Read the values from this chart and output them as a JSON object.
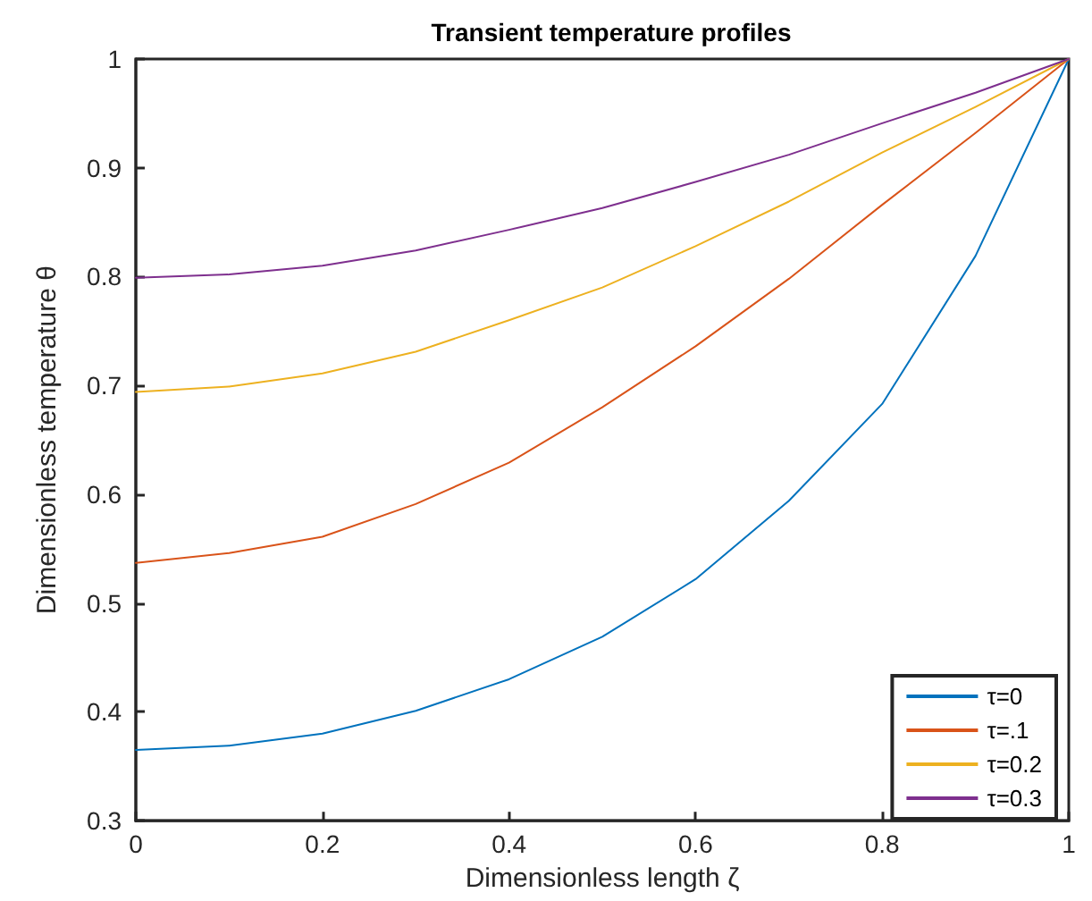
{
  "chart_data": {
    "type": "line",
    "title": "Transient temperature profiles",
    "xlabel": "Dimensionless length ζ",
    "ylabel": "Dimensionless temperature θ",
    "x": [
      0,
      0.1,
      0.2,
      0.3,
      0.4,
      0.5,
      0.6,
      0.7,
      0.8,
      0.9,
      1
    ],
    "series": [
      {
        "name": "τ=0",
        "color": "#0072bd",
        "values": [
          0.365,
          0.369,
          0.38,
          0.401,
          0.43,
          0.469,
          0.522,
          0.594,
          0.683,
          0.819,
          1
        ]
      },
      {
        "name": "τ=.1",
        "color": "#d95319",
        "values": [
          0.537,
          0.546,
          0.561,
          0.591,
          0.629,
          0.68,
          0.736,
          0.798,
          0.866,
          0.932,
          1
        ]
      },
      {
        "name": "τ=0.2",
        "color": "#edb120",
        "values": [
          0.694,
          0.699,
          0.711,
          0.731,
          0.76,
          0.79,
          0.828,
          0.869,
          0.914,
          0.956,
          1
        ]
      },
      {
        "name": "τ=0.3",
        "color": "#7e2f8e",
        "values": [
          0.799,
          0.802,
          0.81,
          0.824,
          0.843,
          0.863,
          0.887,
          0.912,
          0.941,
          0.969,
          1
        ]
      }
    ],
    "xlim": [
      0,
      1
    ],
    "xticks": [
      0,
      0.2,
      0.4,
      0.6,
      0.8,
      1
    ],
    "ylim": [
      0.3,
      1
    ],
    "yticks": [
      0.3,
      0.4,
      0.5,
      0.6,
      0.7,
      0.8,
      0.9,
      1
    ],
    "grid": false,
    "legend": "bottom right",
    "marker": "none",
    "line_style": "solid"
  }
}
